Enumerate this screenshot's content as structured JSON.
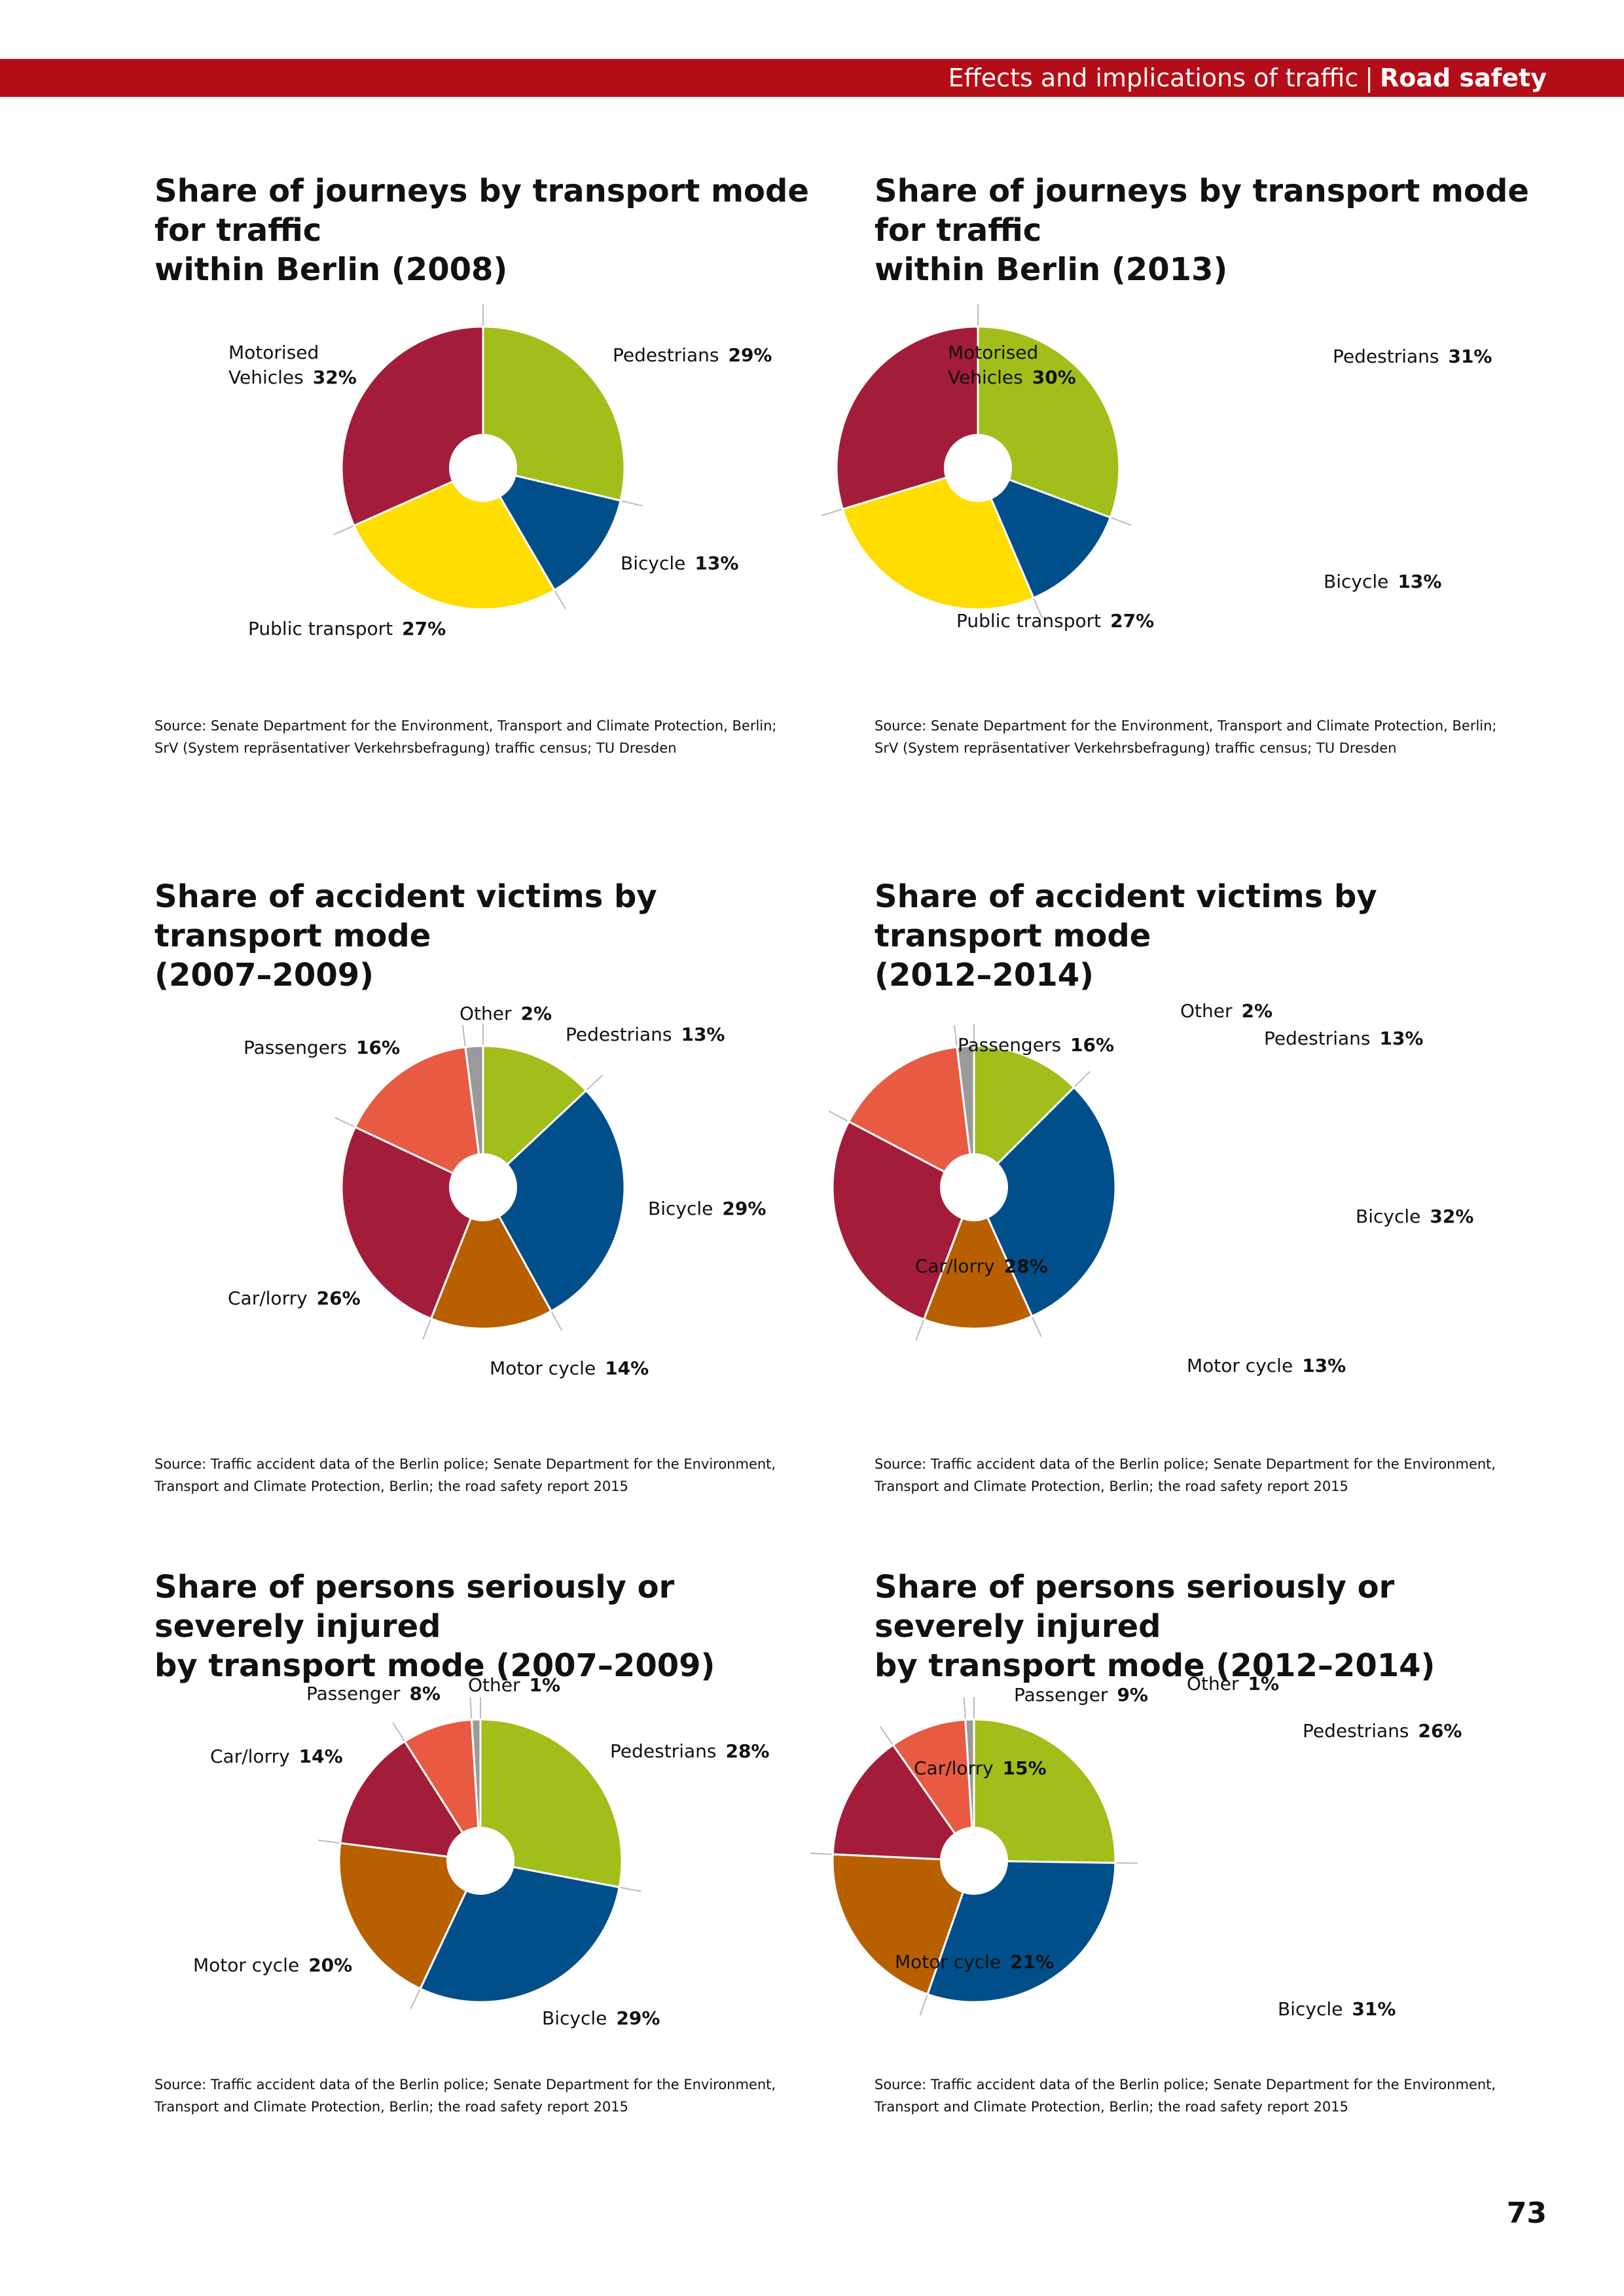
{
  "header": {
    "section": "Effects and implications of traffic",
    "separator": "|",
    "topic": "Road safety",
    "bar_color": "#b30d17"
  },
  "page_number": "73",
  "colors": {
    "Pedestrians": "#a1be1a",
    "Bicycle": "#004f8b",
    "Public transport": "#ffdd00",
    "Motorised Vehicles": "#a31d3a",
    "Motor cycle": "#b86000",
    "Car/lorry": "#a31d3a",
    "Passengers": "#e85a42",
    "Passenger": "#e85a42",
    "Other": "#9a9a9a",
    "separator": "#ffffff",
    "leader": "#bbbbbb"
  },
  "source_journeys": [
    "Source: Senate Department for the Environment, Transport and Climate Protection, Berlin;",
    "SrV (System repräsentativer Verkehrsbefragung) traffic census; TU Dresden"
  ],
  "source_accidents": [
    "Source: Traffic accident data of the Berlin police; Senate Department for the Environment,",
    "Transport and Climate Protection, Berlin; the road safety report 2015"
  ],
  "chart_data": [
    {
      "type": "pie",
      "title_lines": [
        "Share of journeys by transport mode for traffic",
        "within Berlin (2008)"
      ],
      "categories": [
        "Pedestrians",
        "Bicycle",
        "Public transport",
        "Motorised Vehicles"
      ],
      "values": [
        29,
        13,
        27,
        32
      ],
      "value_labels": [
        "29%",
        "13%",
        "27%",
        "32%"
      ],
      "label_lines": [
        [
          "Pedestrians"
        ],
        [
          "Bicycle"
        ],
        [
          "Public transport"
        ],
        [
          "Motorised",
          "Vehicles"
        ]
      ],
      "source": "journeys"
    },
    {
      "type": "pie",
      "title_lines": [
        "Share of journeys by transport mode for traffic",
        "within Berlin (2013)"
      ],
      "categories": [
        "Pedestrians",
        "Bicycle",
        "Public transport",
        "Motorised Vehicles"
      ],
      "values": [
        31,
        13,
        27,
        30
      ],
      "value_labels": [
        "31%",
        "13%",
        "27%",
        "30%"
      ],
      "label_lines": [
        [
          "Pedestrians"
        ],
        [
          "Bicycle"
        ],
        [
          "Public transport"
        ],
        [
          "Motorised",
          "Vehicles"
        ]
      ],
      "source": "journeys"
    },
    {
      "type": "pie",
      "title_lines": [
        "Share of accident victims by transport mode",
        "(2007–2009)"
      ],
      "categories": [
        "Pedestrians",
        "Bicycle",
        "Motor cycle",
        "Car/lorry",
        "Passengers",
        "Other"
      ],
      "values": [
        13,
        29,
        14,
        26,
        16,
        2
      ],
      "value_labels": [
        "13%",
        "29%",
        "14%",
        "26%",
        "16%",
        "2%"
      ],
      "label_lines": [
        [
          "Pedestrians"
        ],
        [
          "Bicycle"
        ],
        [
          "Motor cycle"
        ],
        [
          "Car/lorry"
        ],
        [
          "Passengers"
        ],
        [
          "Other"
        ]
      ],
      "source": "accidents"
    },
    {
      "type": "pie",
      "title_lines": [
        "Share of accident victims by transport mode",
        "(2012–2014)"
      ],
      "categories": [
        "Pedestrians",
        "Bicycle",
        "Motor cycle",
        "Car/lorry",
        "Passengers",
        "Other"
      ],
      "values": [
        13,
        32,
        13,
        28,
        16,
        2
      ],
      "value_labels": [
        "13%",
        "32%",
        "13%",
        "28%",
        "16%",
        "2%"
      ],
      "label_lines": [
        [
          "Pedestrians"
        ],
        [
          "Bicycle"
        ],
        [
          "Motor cycle"
        ],
        [
          "Car/lorry"
        ],
        [
          "Passengers"
        ],
        [
          "Other"
        ]
      ],
      "source": "accidents"
    },
    {
      "type": "pie",
      "title_lines": [
        "Share of persons seriously or severely injured",
        "by transport mode (2007–2009)"
      ],
      "categories": [
        "Pedestrians",
        "Bicycle",
        "Motor cycle",
        "Car/lorry",
        "Passenger",
        "Other"
      ],
      "values": [
        28,
        29,
        20,
        14,
        8,
        1
      ],
      "value_labels": [
        "28%",
        "29%",
        "20%",
        "14%",
        "8%",
        "1%"
      ],
      "label_lines": [
        [
          "Pedestrians"
        ],
        [
          "Bicycle"
        ],
        [
          "Motor cycle"
        ],
        [
          "Car/lorry"
        ],
        [
          "Passenger"
        ],
        [
          "Other"
        ]
      ],
      "source": "accidents"
    },
    {
      "type": "pie",
      "title_lines": [
        "Share of persons seriously or severely injured",
        "by transport mode (2012–2014)"
      ],
      "categories": [
        "Pedestrians",
        "Bicycle",
        "Motor cycle",
        "Car/lorry",
        "Passenger",
        "Other"
      ],
      "values": [
        26,
        31,
        21,
        15,
        9,
        1
      ],
      "value_labels": [
        "26%",
        "31%",
        "21%",
        "15%",
        "9%",
        "1%"
      ],
      "label_lines": [
        [
          "Pedestrians"
        ],
        [
          "Bicycle"
        ],
        [
          "Motor cycle"
        ],
        [
          "Car/lorry"
        ],
        [
          "Passenger"
        ],
        [
          "Other"
        ]
      ],
      "source": "accidents"
    }
  ]
}
